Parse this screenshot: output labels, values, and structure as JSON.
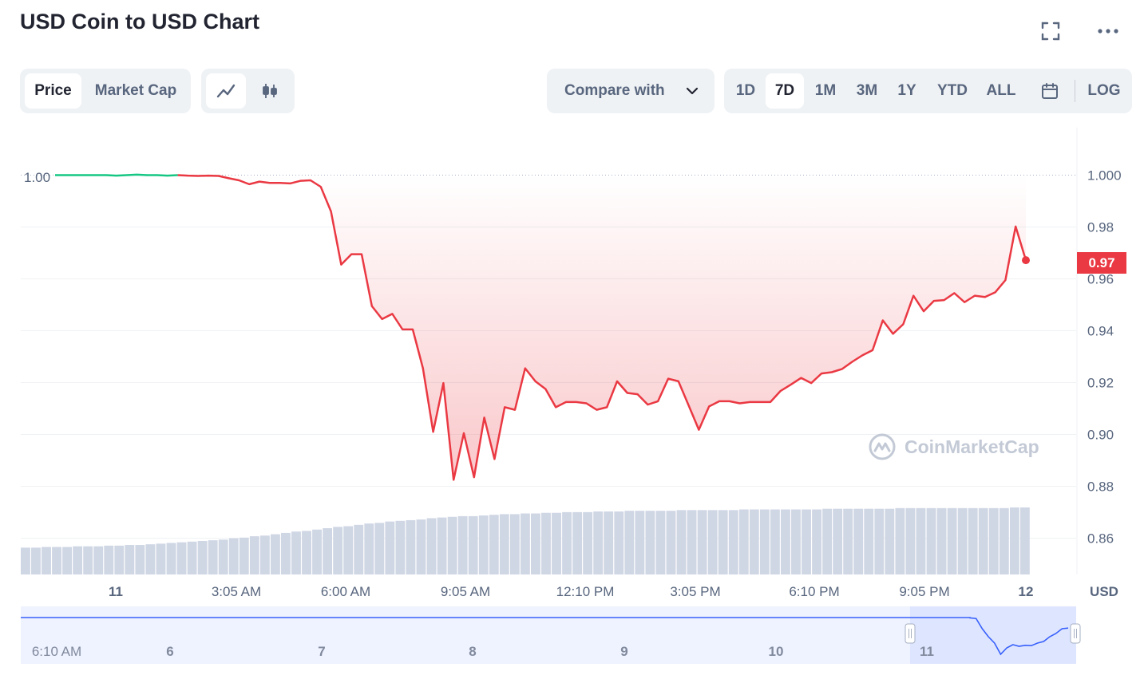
{
  "header": {
    "title": "USD Coin to USD Chart",
    "fullscreen_icon": "fullscreen-icon",
    "more_icon": "more-horizontal-icon"
  },
  "toolbar": {
    "metric_tabs": [
      {
        "label": "Price",
        "active": true
      },
      {
        "label": "Market Cap",
        "active": false
      }
    ],
    "chart_type_buttons": [
      {
        "icon": "line-chart-icon",
        "active": true
      },
      {
        "icon": "candlestick-icon",
        "active": false
      }
    ],
    "compare_label": "Compare with",
    "ranges": [
      {
        "label": "1D",
        "active": false
      },
      {
        "label": "7D",
        "active": true
      },
      {
        "label": "1M",
        "active": false
      },
      {
        "label": "3M",
        "active": false
      },
      {
        "label": "1Y",
        "active": false
      },
      {
        "label": "YTD",
        "active": false
      },
      {
        "label": "ALL",
        "active": false
      }
    ],
    "calendar_icon": "calendar-icon",
    "log_label": "LOG"
  },
  "watermark": "CoinMarketCap",
  "current_price_label": "0.97",
  "colors": {
    "up": "#16c784",
    "down": "#ea3943",
    "volume": "#cfd6e4",
    "navigator_line": "#3861fb",
    "navigator_fill": "#e8edff",
    "text_muted": "#58667e"
  },
  "chart_data": {
    "type": "line",
    "title": "",
    "currency_label": "USD",
    "reference_label": "1.00",
    "reference_value": 1.0,
    "y_ticks": [
      "1.000",
      "0.98",
      "0.96",
      "0.94",
      "0.92",
      "0.90",
      "0.88",
      "0.86"
    ],
    "y_tick_values": [
      1.0,
      0.98,
      0.96,
      0.94,
      0.92,
      0.9,
      0.88,
      0.86
    ],
    "ylim": [
      0.847,
      1.0066
    ],
    "grid": true,
    "x_ticks": [
      {
        "label": "11",
        "bold": true
      },
      {
        "label": "3:05 AM",
        "bold": false
      },
      {
        "label": "6:00 AM",
        "bold": false
      },
      {
        "label": "9:05 AM",
        "bold": false
      },
      {
        "label": "12:10 PM",
        "bold": false
      },
      {
        "label": "3:05 PM",
        "bold": false
      },
      {
        "label": "6:10 PM",
        "bold": false
      },
      {
        "label": "9:05 PM",
        "bold": false
      },
      {
        "label": "12",
        "bold": true
      }
    ],
    "series": [
      {
        "values": [
          1.0,
          1.0,
          1.0,
          1.0,
          1.0,
          1.0,
          0.9998,
          1.0,
          1.0002,
          1.0,
          1.0,
          0.9998,
          1.0,
          0.9998,
          0.9997,
          0.9998,
          0.9997,
          0.9988,
          0.998,
          0.9965,
          0.9975,
          0.997,
          0.997,
          0.9968,
          0.9978,
          0.998,
          0.9955,
          0.986,
          0.9655,
          0.9695,
          0.9695,
          0.9495,
          0.9445,
          0.9465,
          0.9405,
          0.9405,
          0.9255,
          0.901,
          0.9198,
          0.8825,
          0.9005,
          0.8835,
          0.9065,
          0.8905,
          0.9105,
          0.9095,
          0.9255,
          0.9205,
          0.9175,
          0.9105,
          0.9125,
          0.9125,
          0.912,
          0.9095,
          0.9105,
          0.9205,
          0.916,
          0.9155,
          0.9115,
          0.9128,
          0.9215,
          0.9205,
          0.9112,
          0.9018,
          0.9108,
          0.9128,
          0.9128,
          0.912,
          0.9125,
          0.9125,
          0.9125,
          0.9168,
          0.9192,
          0.9218,
          0.9198,
          0.9235,
          0.924,
          0.9252,
          0.928,
          0.9305,
          0.9325,
          0.944,
          0.9388,
          0.9425,
          0.9535,
          0.9475,
          0.9515,
          0.9518,
          0.9545,
          0.951,
          0.9535,
          0.953,
          0.9548,
          0.9595,
          0.9802,
          0.9672
        ]
      }
    ],
    "volume_values": [
      0.4,
      0.4,
      0.41,
      0.41,
      0.41,
      0.42,
      0.42,
      0.42,
      0.43,
      0.43,
      0.44,
      0.44,
      0.45,
      0.46,
      0.47,
      0.48,
      0.49,
      0.5,
      0.51,
      0.52,
      0.54,
      0.55,
      0.57,
      0.58,
      0.6,
      0.62,
      0.64,
      0.65,
      0.67,
      0.69,
      0.71,
      0.72,
      0.74,
      0.76,
      0.77,
      0.79,
      0.8,
      0.81,
      0.82,
      0.84,
      0.85,
      0.86,
      0.87,
      0.87,
      0.88,
      0.89,
      0.9,
      0.9,
      0.91,
      0.91,
      0.92,
      0.92,
      0.93,
      0.93,
      0.93,
      0.94,
      0.94,
      0.94,
      0.95,
      0.95,
      0.95,
      0.95,
      0.95,
      0.96,
      0.96,
      0.96,
      0.96,
      0.96,
      0.96,
      0.97,
      0.97,
      0.97,
      0.97,
      0.97,
      0.97,
      0.97,
      0.97,
      0.98,
      0.98,
      0.98,
      0.98,
      0.98,
      0.98,
      0.98,
      0.99,
      0.99,
      0.99,
      0.99,
      0.99,
      0.99,
      0.99,
      0.99,
      0.99,
      0.99,
      0.99,
      1.0,
      1.0
    ],
    "navigator": {
      "x_ticks": [
        "6:10 AM",
        "6",
        "7",
        "8",
        "9",
        "10",
        "11"
      ],
      "values": [
        1.0,
        1.0,
        1.0,
        1.0,
        1.0,
        1.0,
        1.0,
        1.0,
        1.0,
        1.0,
        1.0,
        1.0,
        1.0,
        1.0,
        1.0,
        1.0,
        1.0,
        1.0,
        1.0,
        1.0,
        1.0,
        1.0,
        1.0,
        1.0,
        1.0,
        1.0,
        1.0,
        1.0,
        1.0,
        1.0,
        1.0,
        1.0,
        1.0,
        1.0,
        1.0,
        1.0,
        0.999,
        0.997,
        0.965,
        0.94,
        0.92,
        0.885,
        0.905,
        0.915,
        0.91,
        0.913,
        0.912,
        0.92,
        0.925,
        0.94,
        0.95,
        0.965,
        0.967
      ],
      "selection": "11 – 12"
    }
  }
}
